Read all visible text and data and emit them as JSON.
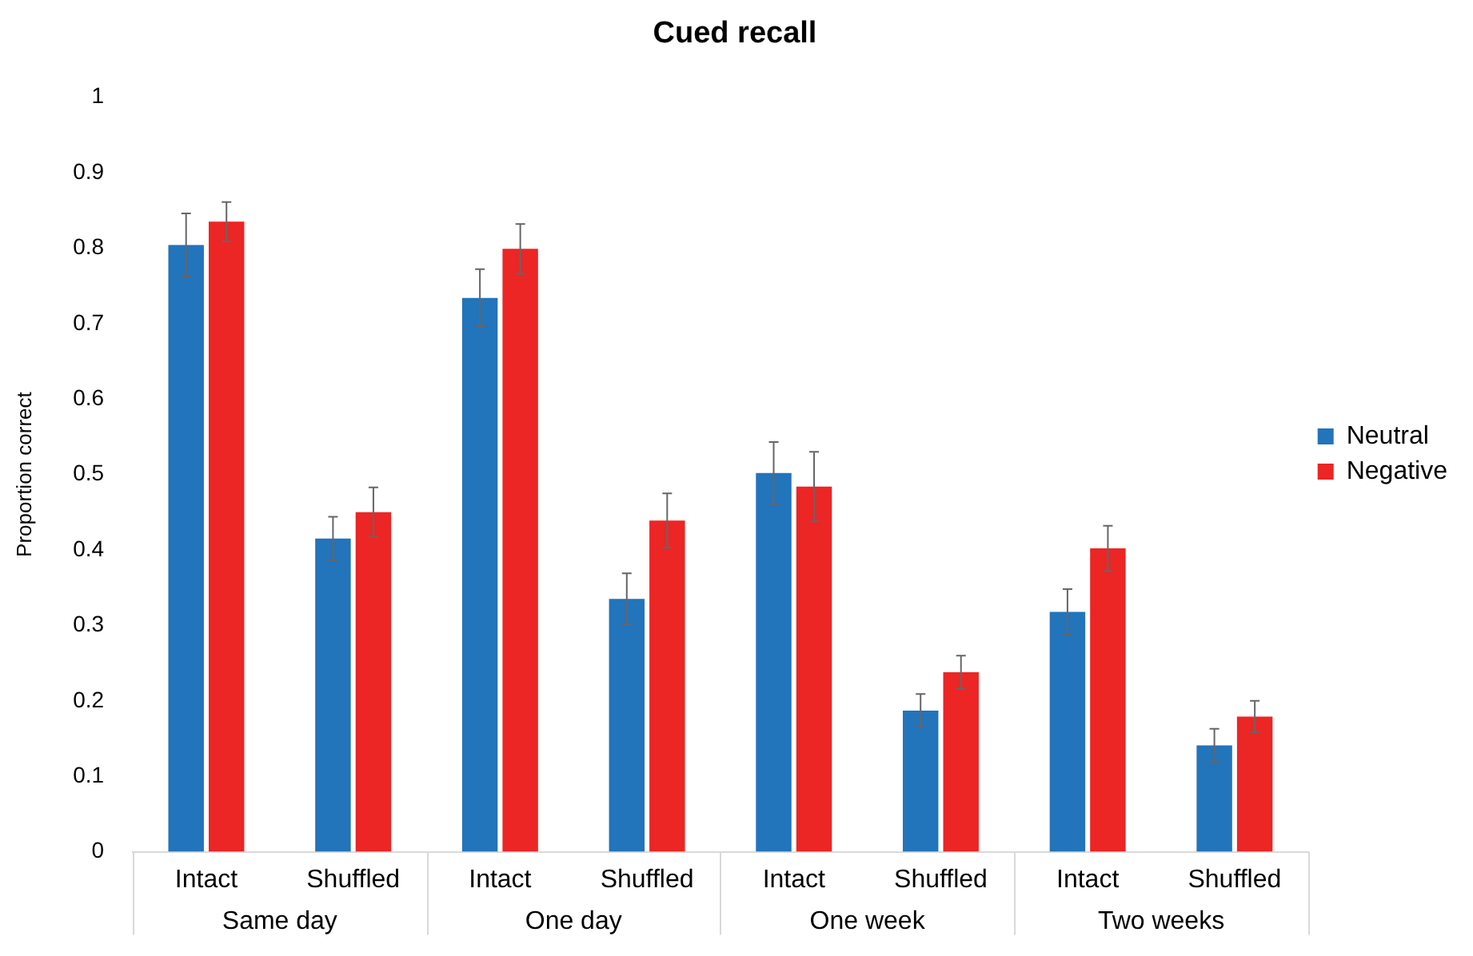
{
  "chart_data": {
    "type": "bar",
    "title": "Cued recall",
    "ylabel": "Proportion correct",
    "categories": [
      "Intact",
      "Shuffled",
      "Intact",
      "Shuffled",
      "Intact",
      "Shuffled",
      "Intact",
      "Shuffled"
    ],
    "annotations": [
      "Same day",
      "One day",
      "One week",
      "Two weeks"
    ],
    "series": [
      {
        "name": "Neutral",
        "color": "#2274bb",
        "values": [
          0.804,
          0.415,
          0.734,
          0.335,
          0.502,
          0.187,
          0.318,
          0.141
        ],
        "errors": [
          0.042,
          0.029,
          0.038,
          0.034,
          0.041,
          0.022,
          0.03,
          0.022
        ]
      },
      {
        "name": "Negative",
        "color": "#ec2525",
        "values": [
          0.835,
          0.45,
          0.799,
          0.439,
          0.484,
          0.238,
          0.402,
          0.179
        ],
        "errors": [
          0.026,
          0.033,
          0.033,
          0.036,
          0.046,
          0.022,
          0.03,
          0.021
        ]
      }
    ],
    "ylim": [
      0,
      1
    ],
    "yticks": [
      0,
      0.1,
      0.2,
      0.3,
      0.4,
      0.5,
      0.6,
      0.7,
      0.8,
      0.9,
      1
    ],
    "grid": false,
    "legend": "right"
  }
}
